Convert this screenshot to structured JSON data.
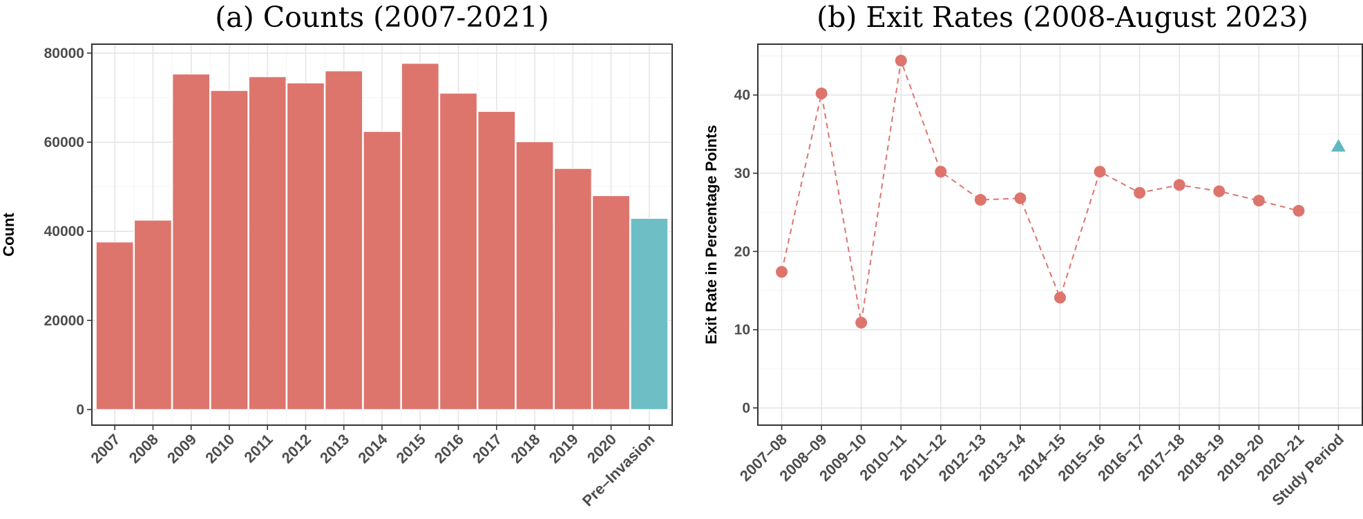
{
  "chart_data": [
    {
      "type": "bar",
      "title": "(a) Counts (2007-2021)",
      "xlabel": "",
      "ylabel": "Count",
      "ylim": [
        -3500,
        82000
      ],
      "yticks": [
        0,
        20000,
        40000,
        60000,
        80000
      ],
      "grid": true,
      "categories": [
        "2007",
        "2008",
        "2009",
        "2010",
        "2011",
        "2012",
        "2013",
        "2014",
        "2015",
        "2016",
        "2017",
        "2018",
        "2019",
        "2020",
        "Pre–Invasion"
      ],
      "values": [
        37600,
        42500,
        75300,
        71600,
        74700,
        73300,
        76000,
        62400,
        77700,
        71000,
        66900,
        60100,
        54100,
        48000,
        42900
      ],
      "colors": [
        "#dd756d",
        "#dd756d",
        "#dd756d",
        "#dd756d",
        "#dd756d",
        "#dd756d",
        "#dd756d",
        "#dd756d",
        "#dd756d",
        "#dd756d",
        "#dd756d",
        "#dd756d",
        "#dd756d",
        "#dd756d",
        "#6ebec5"
      ]
    },
    {
      "type": "line",
      "title": "(b) Exit Rates (2008-August 2023)",
      "xlabel": "",
      "ylabel": "Exit Rate in Percentage Points",
      "ylim": [
        -2.2,
        46.5
      ],
      "yticks": [
        0,
        10,
        20,
        30,
        40
      ],
      "grid": true,
      "categories": [
        "2007–08",
        "2008–09",
        "2009–10",
        "2010–11",
        "2011–12",
        "2012–13",
        "2013–14",
        "2014–15",
        "2015–16",
        "2016–17",
        "2017–18",
        "2018–19",
        "2019–20",
        "2020–21",
        "Study Period"
      ],
      "series": [
        {
          "values": [
            17.4,
            40.2,
            10.9,
            44.4,
            30.2,
            26.6,
            26.8,
            14.1,
            30.2,
            27.5,
            28.5,
            27.7,
            26.5,
            25.2,
            null
          ],
          "color": "#dd756d",
          "marker": "circle",
          "linestyle": "dashed"
        },
        {
          "values": [
            null,
            null,
            null,
            null,
            null,
            null,
            null,
            null,
            null,
            null,
            null,
            null,
            null,
            null,
            33.4
          ],
          "color": "#5fb8c2",
          "marker": "triangle"
        }
      ]
    }
  ]
}
